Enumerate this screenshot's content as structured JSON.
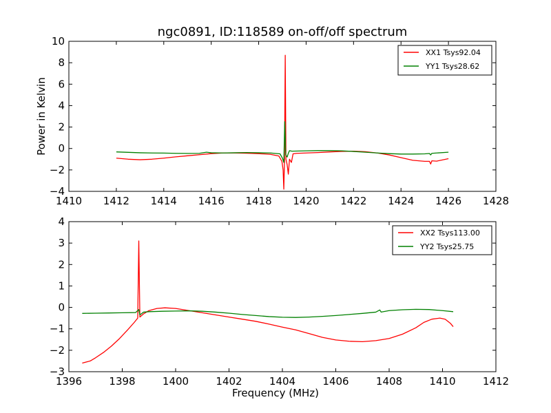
{
  "figure": {
    "title": "ngc0891, ID:118589 on-off/off spectrum"
  },
  "chart_data": [
    {
      "type": "line",
      "title": "ngc0891, ID:118589 on-off/off spectrum",
      "xlabel": "",
      "ylabel": "Power in Kelvin",
      "xlim": [
        1410,
        1428
      ],
      "ylim": [
        -4,
        10
      ],
      "xticks": [
        "1410",
        "1412",
        "1414",
        "1416",
        "1418",
        "1420",
        "1422",
        "1424",
        "1426",
        "1428"
      ],
      "yticks": [
        "−4",
        "−2",
        "0",
        "2",
        "4",
        "6",
        "8",
        "10"
      ],
      "grid": false,
      "legend_position": "top-right",
      "series": [
        {
          "name": "XX1 Tsys92.04",
          "color": "#ff0000",
          "points": [
            [
              1412.0,
              -0.9
            ],
            [
              1412.5,
              -1.0
            ],
            [
              1413.0,
              -1.05
            ],
            [
              1413.5,
              -1.0
            ],
            [
              1414.0,
              -0.9
            ],
            [
              1414.5,
              -0.78
            ],
            [
              1415.0,
              -0.68
            ],
            [
              1415.5,
              -0.58
            ],
            [
              1416.0,
              -0.48
            ],
            [
              1416.5,
              -0.42
            ],
            [
              1417.0,
              -0.42
            ],
            [
              1417.5,
              -0.44
            ],
            [
              1418.0,
              -0.48
            ],
            [
              1418.5,
              -0.55
            ],
            [
              1418.85,
              -0.7
            ],
            [
              1418.98,
              -1.2
            ],
            [
              1419.03,
              -2.0
            ],
            [
              1419.06,
              -3.8
            ],
            [
              1419.09,
              -1.0
            ],
            [
              1419.12,
              8.7
            ],
            [
              1419.15,
              -1.0
            ],
            [
              1419.2,
              -1.5
            ],
            [
              1419.25,
              -2.4
            ],
            [
              1419.3,
              -1.0
            ],
            [
              1419.38,
              -1.3
            ],
            [
              1419.45,
              -0.5
            ],
            [
              1419.6,
              -0.45
            ],
            [
              1420.0,
              -0.42
            ],
            [
              1420.5,
              -0.38
            ],
            [
              1421.0,
              -0.32
            ],
            [
              1421.5,
              -0.27
            ],
            [
              1422.0,
              -0.25
            ],
            [
              1422.5,
              -0.3
            ],
            [
              1423.0,
              -0.42
            ],
            [
              1423.5,
              -0.6
            ],
            [
              1424.0,
              -0.85
            ],
            [
              1424.5,
              -1.1
            ],
            [
              1425.0,
              -1.2
            ],
            [
              1425.2,
              -1.2
            ],
            [
              1425.25,
              -1.45
            ],
            [
              1425.3,
              -1.15
            ],
            [
              1425.5,
              -1.18
            ],
            [
              1426.0,
              -0.95
            ]
          ]
        },
        {
          "name": "YY1 Tsys28.62",
          "color": "#008000",
          "points": [
            [
              1412.0,
              -0.32
            ],
            [
              1412.5,
              -0.36
            ],
            [
              1413.0,
              -0.4
            ],
            [
              1413.5,
              -0.42
            ],
            [
              1414.0,
              -0.43
            ],
            [
              1414.5,
              -0.45
            ],
            [
              1415.0,
              -0.46
            ],
            [
              1415.5,
              -0.45
            ],
            [
              1415.8,
              -0.35
            ],
            [
              1416.0,
              -0.4
            ],
            [
              1416.5,
              -0.42
            ],
            [
              1417.0,
              -0.4
            ],
            [
              1417.5,
              -0.38
            ],
            [
              1418.0,
              -0.4
            ],
            [
              1418.5,
              -0.42
            ],
            [
              1418.9,
              -0.5
            ],
            [
              1419.0,
              -0.9
            ],
            [
              1419.06,
              -1.3
            ],
            [
              1419.1,
              2.5
            ],
            [
              1419.14,
              -0.6
            ],
            [
              1419.2,
              -0.8
            ],
            [
              1419.25,
              -0.45
            ],
            [
              1419.3,
              -0.2
            ],
            [
              1419.4,
              -0.25
            ],
            [
              1420.0,
              -0.22
            ],
            [
              1420.5,
              -0.2
            ],
            [
              1421.0,
              -0.2
            ],
            [
              1421.5,
              -0.22
            ],
            [
              1422.0,
              -0.28
            ],
            [
              1422.5,
              -0.35
            ],
            [
              1423.0,
              -0.42
            ],
            [
              1423.5,
              -0.48
            ],
            [
              1424.0,
              -0.52
            ],
            [
              1424.5,
              -0.52
            ],
            [
              1425.0,
              -0.5
            ],
            [
              1425.2,
              -0.47
            ],
            [
              1425.25,
              -0.6
            ],
            [
              1425.3,
              -0.45
            ],
            [
              1425.5,
              -0.42
            ],
            [
              1426.0,
              -0.35
            ]
          ]
        }
      ]
    },
    {
      "type": "line",
      "title": "",
      "xlabel": "Frequency (MHz)",
      "ylabel": "",
      "xlim": [
        1396,
        1412
      ],
      "ylim": [
        -3,
        4
      ],
      "xticks": [
        "1396",
        "1398",
        "1400",
        "1402",
        "1404",
        "1406",
        "1408",
        "1410",
        "1412"
      ],
      "yticks": [
        "−3",
        "−2",
        "−1",
        "0",
        "1",
        "2",
        "3",
        "4"
      ],
      "grid": false,
      "legend_position": "top-right",
      "series": [
        {
          "name": "XX2 Tsys113.00",
          "color": "#ff0000",
          "points": [
            [
              1396.5,
              -2.6
            ],
            [
              1396.8,
              -2.5
            ],
            [
              1397.0,
              -2.35
            ],
            [
              1397.3,
              -2.1
            ],
            [
              1397.6,
              -1.8
            ],
            [
              1397.9,
              -1.45
            ],
            [
              1398.2,
              -1.05
            ],
            [
              1398.45,
              -0.7
            ],
            [
              1398.58,
              -0.5
            ],
            [
              1398.62,
              3.1
            ],
            [
              1398.66,
              -0.45
            ],
            [
              1398.8,
              -0.3
            ],
            [
              1399.0,
              -0.15
            ],
            [
              1399.3,
              -0.05
            ],
            [
              1399.6,
              -0.02
            ],
            [
              1400.0,
              -0.05
            ],
            [
              1400.5,
              -0.15
            ],
            [
              1401.0,
              -0.25
            ],
            [
              1401.5,
              -0.35
            ],
            [
              1402.0,
              -0.45
            ],
            [
              1402.5,
              -0.55
            ],
            [
              1403.0,
              -0.65
            ],
            [
              1403.5,
              -0.78
            ],
            [
              1404.0,
              -0.92
            ],
            [
              1404.5,
              -1.05
            ],
            [
              1405.0,
              -1.22
            ],
            [
              1405.5,
              -1.4
            ],
            [
              1406.0,
              -1.52
            ],
            [
              1406.5,
              -1.58
            ],
            [
              1407.0,
              -1.6
            ],
            [
              1407.5,
              -1.55
            ],
            [
              1408.0,
              -1.45
            ],
            [
              1408.5,
              -1.25
            ],
            [
              1409.0,
              -0.95
            ],
            [
              1409.3,
              -0.7
            ],
            [
              1409.6,
              -0.55
            ],
            [
              1409.9,
              -0.5
            ],
            [
              1410.1,
              -0.55
            ],
            [
              1410.3,
              -0.75
            ],
            [
              1410.4,
              -0.9
            ]
          ]
        },
        {
          "name": "YY2 Tsys25.75",
          "color": "#008000",
          "points": [
            [
              1396.5,
              -0.28
            ],
            [
              1397.0,
              -0.27
            ],
            [
              1397.5,
              -0.26
            ],
            [
              1398.0,
              -0.25
            ],
            [
              1398.5,
              -0.24
            ],
            [
              1398.62,
              -0.1
            ],
            [
              1398.66,
              -0.35
            ],
            [
              1398.8,
              -0.22
            ],
            [
              1399.0,
              -0.2
            ],
            [
              1399.5,
              -0.18
            ],
            [
              1400.0,
              -0.17
            ],
            [
              1400.5,
              -0.16
            ],
            [
              1401.0,
              -0.18
            ],
            [
              1401.5,
              -0.22
            ],
            [
              1402.0,
              -0.27
            ],
            [
              1402.5,
              -0.33
            ],
            [
              1403.0,
              -0.38
            ],
            [
              1403.5,
              -0.43
            ],
            [
              1404.0,
              -0.46
            ],
            [
              1404.5,
              -0.47
            ],
            [
              1405.0,
              -0.45
            ],
            [
              1405.5,
              -0.42
            ],
            [
              1406.0,
              -0.38
            ],
            [
              1406.5,
              -0.33
            ],
            [
              1407.0,
              -0.28
            ],
            [
              1407.5,
              -0.22
            ],
            [
              1407.65,
              -0.12
            ],
            [
              1407.7,
              -0.22
            ],
            [
              1408.0,
              -0.15
            ],
            [
              1408.5,
              -0.11
            ],
            [
              1409.0,
              -0.09
            ],
            [
              1409.5,
              -0.1
            ],
            [
              1410.0,
              -0.15
            ],
            [
              1410.4,
              -0.2
            ]
          ]
        }
      ]
    }
  ]
}
